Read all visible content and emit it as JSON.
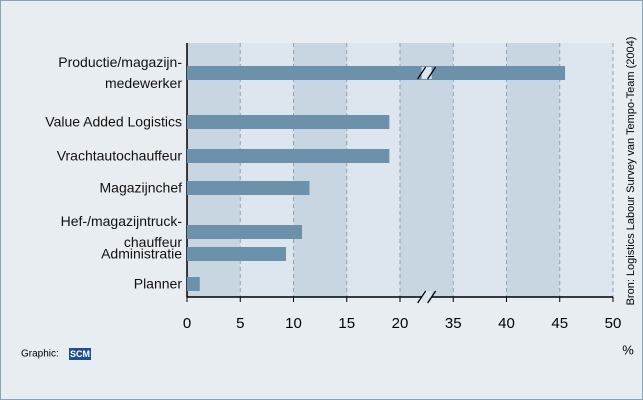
{
  "chart_data": {
    "type": "bar",
    "orientation": "horizontal",
    "categories": [
      "Productie/magazijn-\nmedewerker",
      "Value Added Logistics",
      "Vrachtautochauffeur",
      "Magazijnchef",
      "Hef-/magazijntruck-\nchauffeur",
      "Administratie",
      "Planner"
    ],
    "values": [
      45.5,
      19,
      19,
      11.5,
      10.8,
      9.3,
      1.2
    ],
    "color": "#6b91ab",
    "xlim": [
      0,
      50
    ],
    "xticks": [
      0,
      5,
      10,
      15,
      20,
      35,
      40,
      45,
      50
    ],
    "axis_break": [
      20,
      35
    ],
    "x_label": "%",
    "grid": true,
    "source": "Bron: Logistics Labour Survey van Tempo-Team (2004)",
    "credit": "Graphic:",
    "credit_logo": "SCM"
  }
}
